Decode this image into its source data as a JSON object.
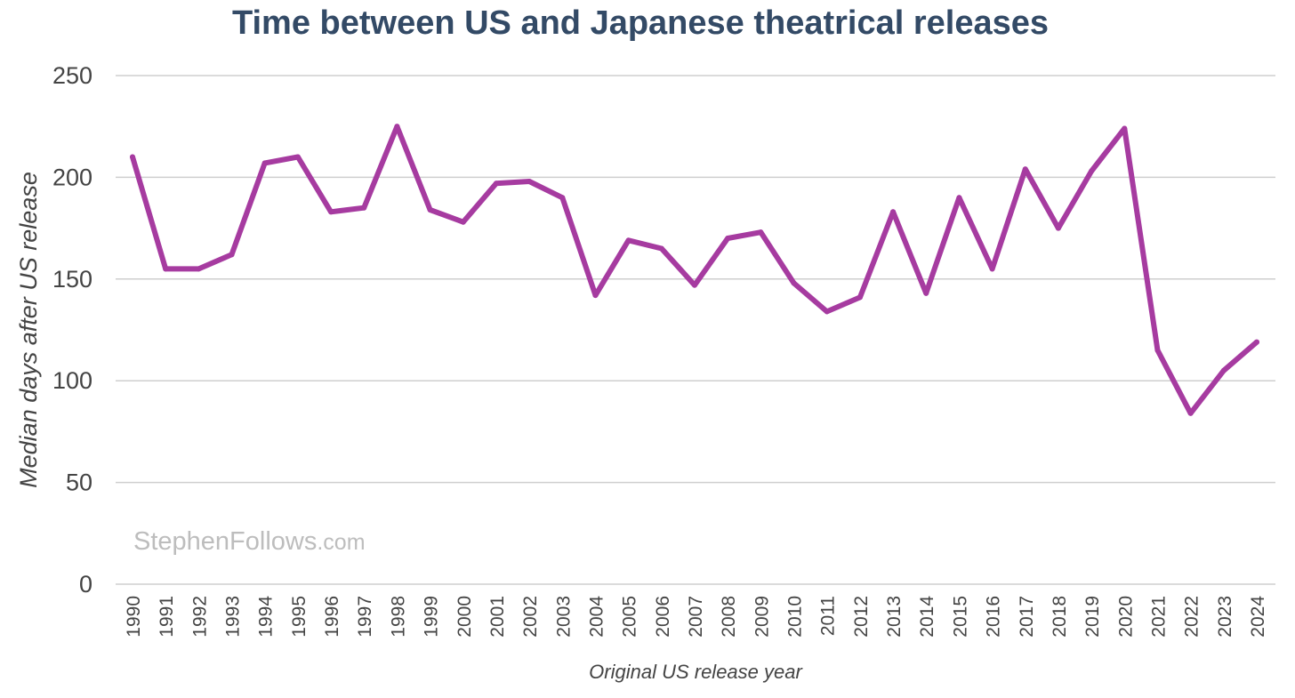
{
  "chart_data": {
    "type": "line",
    "title": "Time between US and Japanese theatrical releases",
    "xlabel": "Original US release year",
    "ylabel": "Median days after US release",
    "ylim": [
      0,
      250
    ],
    "yticks": [
      "0",
      "50",
      "100",
      "150",
      "200",
      "250"
    ],
    "grid": true,
    "legend": "none",
    "categories": [
      "1990",
      "1991",
      "1992",
      "1993",
      "1994",
      "1995",
      "1996",
      "1997",
      "1998",
      "1999",
      "2000",
      "2001",
      "2002",
      "2003",
      "2004",
      "2005",
      "2006",
      "2007",
      "2008",
      "2009",
      "2010",
      "2011",
      "2012",
      "2013",
      "2014",
      "2015",
      "2016",
      "2017",
      "2018",
      "2019",
      "2020",
      "2021",
      "2022",
      "2023",
      "2024"
    ],
    "series": [
      {
        "color": "#a63ba0",
        "values": [
          210,
          155,
          155,
          162,
          207,
          210,
          183,
          185,
          225,
          184,
          178,
          197,
          198,
          190,
          142,
          169,
          165,
          147,
          170,
          173,
          148,
          134,
          141,
          183,
          143,
          190,
          155,
          204,
          175,
          203,
          224,
          115,
          84,
          105,
          119
        ]
      }
    ]
  },
  "watermark": {
    "brand": "StephenFollows",
    "suffix": ".com"
  },
  "colors": {
    "title": "#334a66",
    "line": "#a63ba0",
    "grid": "#cfcfcf",
    "text": "#444444",
    "watermark": "#bdbdbd"
  }
}
